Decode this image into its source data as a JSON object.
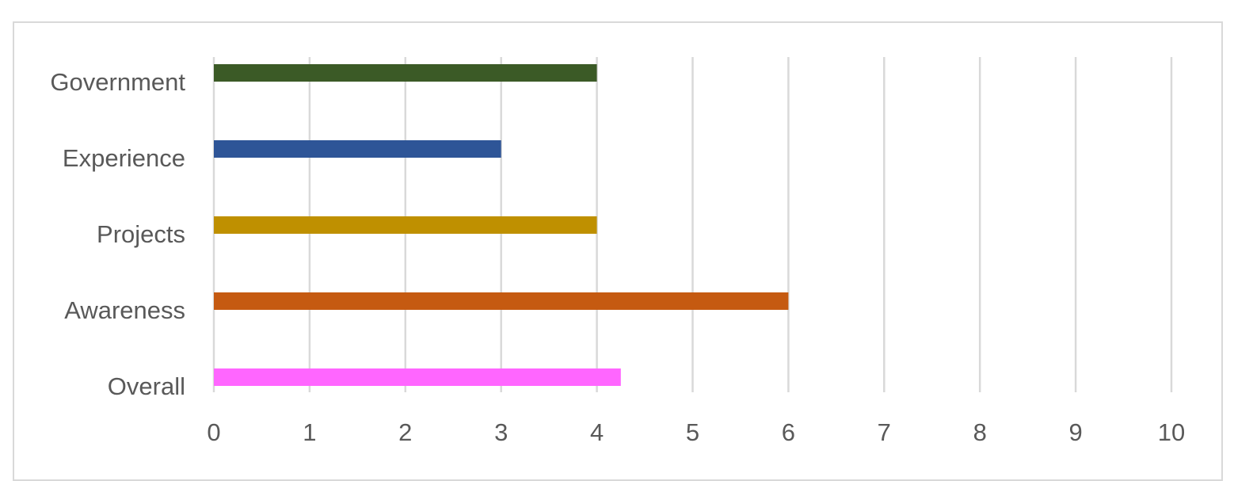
{
  "chart_data": {
    "type": "bar",
    "orientation": "horizontal",
    "title": "",
    "xlabel": "",
    "ylabel": "",
    "categories": [
      "Government",
      "Experience",
      "Projects",
      "Awareness",
      "Overall"
    ],
    "values": [
      4,
      3,
      4,
      6,
      4.25
    ],
    "bar_colors": [
      "#3b5a26",
      "#2e5597",
      "#bf9000",
      "#c55a11",
      "#ff66ff"
    ],
    "xlim": [
      0,
      10
    ],
    "x_ticks": [
      "0",
      "1",
      "2",
      "3",
      "4",
      "5",
      "6",
      "7",
      "8",
      "9",
      "10"
    ],
    "grid": true,
    "legend": "none"
  }
}
